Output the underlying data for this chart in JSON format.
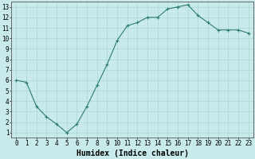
{
  "x": [
    0,
    1,
    2,
    3,
    4,
    5,
    6,
    7,
    8,
    9,
    10,
    11,
    12,
    13,
    14,
    15,
    16,
    17,
    18,
    19,
    20,
    21,
    22,
    23
  ],
  "y": [
    6.0,
    5.8,
    3.5,
    2.5,
    1.8,
    1.0,
    1.8,
    3.5,
    5.5,
    7.5,
    9.8,
    11.2,
    11.5,
    12.0,
    12.0,
    12.8,
    13.0,
    13.2,
    12.2,
    11.5,
    10.8,
    10.8,
    10.8,
    10.5
  ],
  "line_color": "#2e7d6e",
  "marker": "+",
  "background_color": "#c8eaea",
  "grid_color": "#a8d8d8",
  "xlabel": "Humidex (Indice chaleur)",
  "xlabel_fontsize": 7,
  "xlabel_weight": "bold",
  "xlim": [
    -0.5,
    23.5
  ],
  "ylim": [
    0.5,
    13.5
  ],
  "xticks": [
    0,
    1,
    2,
    3,
    4,
    5,
    6,
    7,
    8,
    9,
    10,
    11,
    12,
    13,
    14,
    15,
    16,
    17,
    18,
    19,
    20,
    21,
    22,
    23
  ],
  "yticks": [
    1,
    2,
    3,
    4,
    5,
    6,
    7,
    8,
    9,
    10,
    11,
    12,
    13
  ],
  "tick_labelsize": 5.5,
  "title": ""
}
